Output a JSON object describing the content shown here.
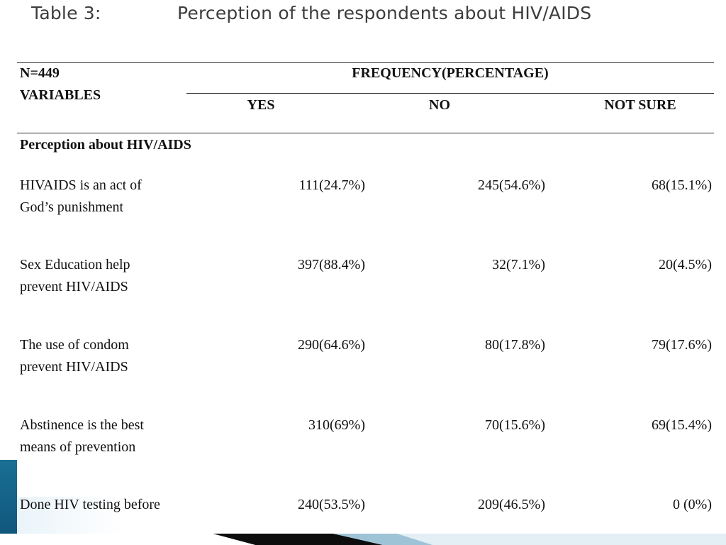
{
  "title": {
    "number": "Table 3:",
    "text": "Perception of the respondents about HIV/AIDS"
  },
  "table": {
    "n_label": "N=449",
    "variables_label": "VARIABLES",
    "group_header": "FREQUENCY(PERCENTAGE)",
    "columns": [
      "YES",
      "NO",
      "NOT SURE"
    ],
    "section_label": "Perception about HIV/AIDS",
    "rows": [
      {
        "label_line1": "HIVAIDS is an act of",
        "label_line2": "God’s punishment",
        "yes": "111(24.7%)",
        "no": "245(54.6%)",
        "not_sure": "68(15.1%)"
      },
      {
        "label_line1": "Sex Education help",
        "label_line2": "prevent HIV/AIDS",
        "yes": "397(88.4%)",
        "no": "32(7.1%)",
        "not_sure": "20(4.5%)"
      },
      {
        "label_line1": "The use of condom",
        "label_line2": "prevent HIV/AIDS",
        "yes": "290(64.6%)",
        "no": "80(17.8%)",
        "not_sure": "79(17.6%)"
      },
      {
        "label_line1": "Abstinence is the best",
        "label_line2": "means of prevention",
        "yes": "310(69%)",
        "no": "70(15.6%)",
        "not_sure": "69(15.4%)"
      },
      {
        "label_line1": "Done HIV testing before",
        "label_line2": "",
        "yes": "240(53.5%)",
        "no": "209(46.5%)",
        "not_sure": "0 (0%)"
      }
    ]
  },
  "colors": {
    "title_text": "#3d3d3d",
    "accent_blue": "#1a6f95",
    "rule": "#2b2b2b"
  }
}
